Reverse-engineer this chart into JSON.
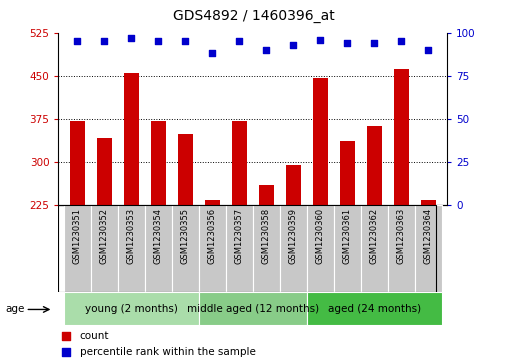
{
  "title": "GDS4892 / 1460396_at",
  "samples": [
    "GSM1230351",
    "GSM1230352",
    "GSM1230353",
    "GSM1230354",
    "GSM1230355",
    "GSM1230356",
    "GSM1230357",
    "GSM1230358",
    "GSM1230359",
    "GSM1230360",
    "GSM1230361",
    "GSM1230362",
    "GSM1230363",
    "GSM1230364"
  ],
  "counts": [
    372,
    342,
    455,
    372,
    348,
    233,
    372,
    260,
    295,
    447,
    337,
    362,
    462,
    233
  ],
  "percentiles": [
    95,
    95,
    97,
    95,
    95,
    88,
    95,
    90,
    93,
    96,
    94,
    94,
    95,
    90
  ],
  "groups": [
    {
      "label": "young (2 months)",
      "start": 0,
      "end": 5,
      "color": "#aaddaa"
    },
    {
      "label": "middle aged (12 months)",
      "start": 5,
      "end": 9,
      "color": "#88cc88"
    },
    {
      "label": "aged (24 months)",
      "start": 9,
      "end": 14,
      "color": "#44bb44"
    }
  ],
  "ylim_left": [
    225,
    525
  ],
  "ylim_right": [
    0,
    100
  ],
  "yticks_left": [
    225,
    300,
    375,
    450,
    525
  ],
  "yticks_right": [
    0,
    25,
    50,
    75,
    100
  ],
  "bar_color": "#CC0000",
  "dot_color": "#0000CC",
  "grid_color": "#000000",
  "sample_bg_color": "#C8C8C8",
  "tick_label_color_left": "#CC0000",
  "tick_label_color_right": "#0000CC",
  "title_color": "#000000",
  "bar_width": 0.55,
  "group_label_fontsize": 7.5,
  "sample_fontsize": 6.0,
  "legend_fontsize": 7.5,
  "title_fontsize": 10
}
